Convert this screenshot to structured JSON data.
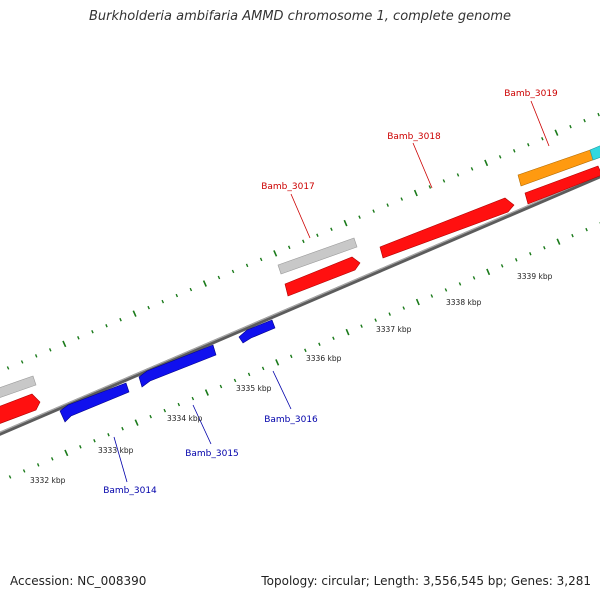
{
  "title": "Burkholderia ambifaria AMMD chromosome 1, complete genome",
  "footer": {
    "accession": "Accession: NC_008390",
    "summary": "Topology: circular; Length: 3,556,545 bp; Genes: 3,281"
  },
  "colors": {
    "backbone": "#7a7a7a",
    "ticks": "#1a7a1a",
    "forward_label": "#cc0000",
    "reverse_label": "#0000aa",
    "red_gene": "#ff1010",
    "blue_gene": "#1010ee",
    "gray_gene": "#c8c8c8",
    "orange_gene": "#ff9a10",
    "cyan_gene": "#30d8e0"
  },
  "scale_labels": [
    "3332 kbp",
    "3333 kbp",
    "3334 kbp",
    "3335 kbp",
    "3336 kbp",
    "3337 kbp",
    "3338 kbp",
    "3339 kbp"
  ],
  "forward_genes": [
    "Bamb_3017",
    "Bamb_3018",
    "Bamb_3019"
  ],
  "reverse_genes": [
    "Bamb_3014",
    "Bamb_3015",
    "Bamb_3016"
  ]
}
